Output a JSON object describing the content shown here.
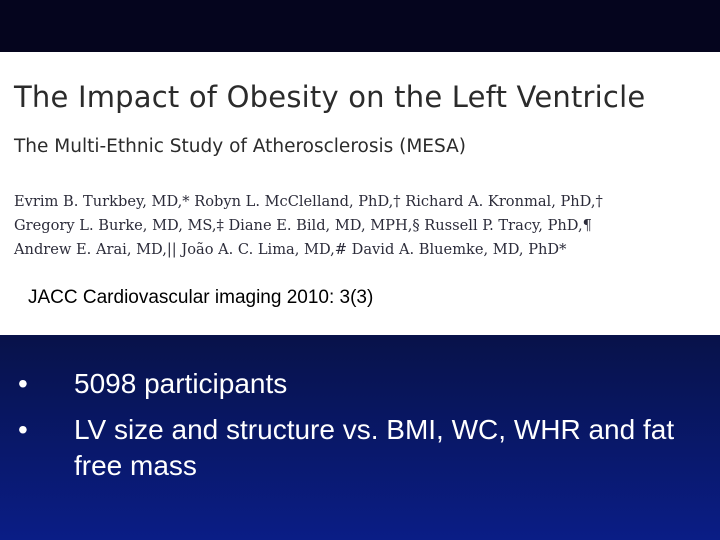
{
  "paper": {
    "title": "The Impact of Obesity on the Left Ventricle",
    "subtitle": "The Multi-Ethnic Study of Atherosclerosis (MESA)",
    "author_lines": [
      "Evrim B. Turkbey, MD,* Robyn L. McClelland, PhD,† Richard A. Kronmal, PhD,†",
      "Gregory L. Burke, MD, MS,‡ Diane E. Bild, MD, MPH,§ Russell P. Tracy, PhD,¶",
      "Andrew E. Arai, MD,|| João A. C. Lima, MD,# David A. Bluemke, MD, PhD*"
    ]
  },
  "citation": "JACC Cardiovascular imaging 2010: 3(3)",
  "bullets": [
    "5098 participants",
    "LV size and structure vs. BMI, WC, WHR and fat free mass"
  ],
  "bullet_glyph": "•",
  "colors": {
    "background_top": "#04041a",
    "background_bottom": "#0a1d86",
    "paper": "#ffffff",
    "bullet_text": "#ffffff"
  }
}
